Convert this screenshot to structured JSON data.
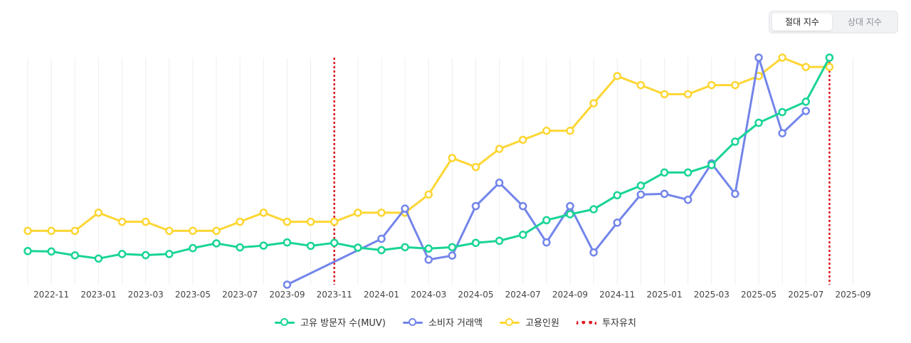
{
  "toggle": {
    "absolute": "절대 지수",
    "relative": "상대 지수",
    "active": "absolute"
  },
  "chart_data": {
    "type": "line",
    "title": "",
    "xlabel": "",
    "ylabel": "",
    "x_ticks": [
      "2022-11",
      "2023-01",
      "2023-03",
      "2023-05",
      "2023-07",
      "2023-09",
      "2023-11",
      "2024-01",
      "2024-03",
      "2024-05",
      "2024-07",
      "2024-09",
      "2024-11",
      "2025-01",
      "2025-03",
      "2025-05",
      "2025-07",
      "2025-09"
    ],
    "x_range": [
      "2022-10",
      "2025-09"
    ],
    "y_range": [
      0,
      100
    ],
    "series": [
      {
        "name": "고유 방문자 수(MUV)",
        "color": "#18d496",
        "start": "2022-10",
        "values": [
          14.8,
          14.6,
          12.9,
          11.5,
          13.5,
          13.0,
          13.5,
          16.1,
          18.2,
          16.4,
          17.2,
          18.6,
          17.1,
          18.4,
          16.3,
          15.2,
          16.5,
          15.9,
          16.5,
          18.4,
          19.3,
          22.0,
          28.4,
          31.0,
          33.2,
          39.4,
          43.6,
          49.4,
          49.4,
          52.7,
          63.0,
          71.3,
          76.0,
          80.6,
          100.0
        ]
      },
      {
        "name": "소비자 거래액",
        "color": "#7385ea",
        "start": "2023-09",
        "values": [
          0,
          null,
          null,
          null,
          20.2,
          33.5,
          11.0,
          12.8,
          34.6,
          44.9,
          34.6,
          18.6,
          34.6,
          14.2,
          27.3,
          39.7,
          40.0,
          37.4,
          53.4,
          40.0,
          100.0,
          66.7,
          76.5
        ]
      },
      {
        "name": "고용인원",
        "color": "#fdd633",
        "start": "2022-10",
        "values": [
          23.7,
          23.7,
          23.7,
          31.7,
          27.7,
          27.7,
          23.7,
          23.7,
          23.7,
          27.7,
          31.7,
          27.7,
          27.7,
          27.7,
          31.7,
          31.7,
          31.7,
          39.7,
          55.8,
          51.8,
          59.8,
          63.8,
          67.8,
          67.8,
          79.9,
          91.9,
          87.9,
          83.9,
          83.9,
          87.9,
          87.9,
          91.9,
          100.0,
          95.9,
          95.9
        ]
      }
    ],
    "vlines": [
      {
        "label": "투자유치",
        "date": "2023-11",
        "color": "#e0191e",
        "style": "dotted"
      },
      {
        "label": "투자유치",
        "date": "2025-08",
        "color": "#e0191e",
        "style": "dotted"
      }
    ],
    "legend": [
      {
        "label": "고유 방문자 수(MUV)",
        "color": "#18d496",
        "kind": "line"
      },
      {
        "label": "소비자 거래액",
        "color": "#7385ea",
        "kind": "line"
      },
      {
        "label": "고용인원",
        "color": "#fdd633",
        "kind": "line"
      },
      {
        "label": "투자유치",
        "color": "#e0191e",
        "kind": "dash"
      }
    ],
    "legend_position": "bottom"
  }
}
